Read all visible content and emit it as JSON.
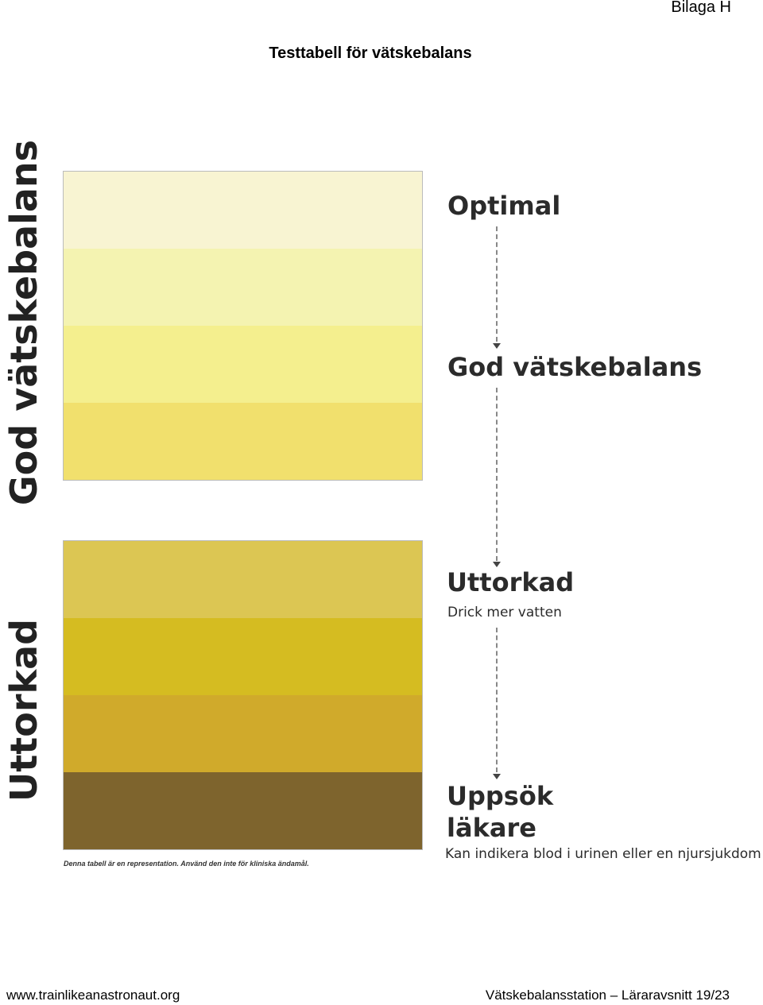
{
  "header": {
    "annex": "Bilaga H",
    "title": "Testtabell för vätskebalans"
  },
  "side_labels": {
    "good": "God vätskebalans",
    "dehydrated": "Uttorkad"
  },
  "swatches": {
    "good": [
      "#f8f4d2",
      "#f4f3b1",
      "#f4ef8e",
      "#f1e06d"
    ],
    "dehydrated": [
      "#dcc653",
      "#d5bc21",
      "#d0aa2b",
      "#7e642d"
    ]
  },
  "levels": {
    "optimal": "Optimal",
    "good": "God vätskebalans",
    "dehydrated": "Uttorkad",
    "dehydrated_sub": "Drick mer vatten",
    "doctor_line1": "Uppsök",
    "doctor_line2": "läkare",
    "doctor_sub": "Kan indikera blod i urinen eller en njursjukdom"
  },
  "disclaimer": "Denna tabell är en representation. Använd den inte för kliniska ändamål.",
  "footer": {
    "url": "www.trainlikeanastronaut.org",
    "page_info": "Vätskebalansstation – Läraravsnitt 19/23"
  }
}
